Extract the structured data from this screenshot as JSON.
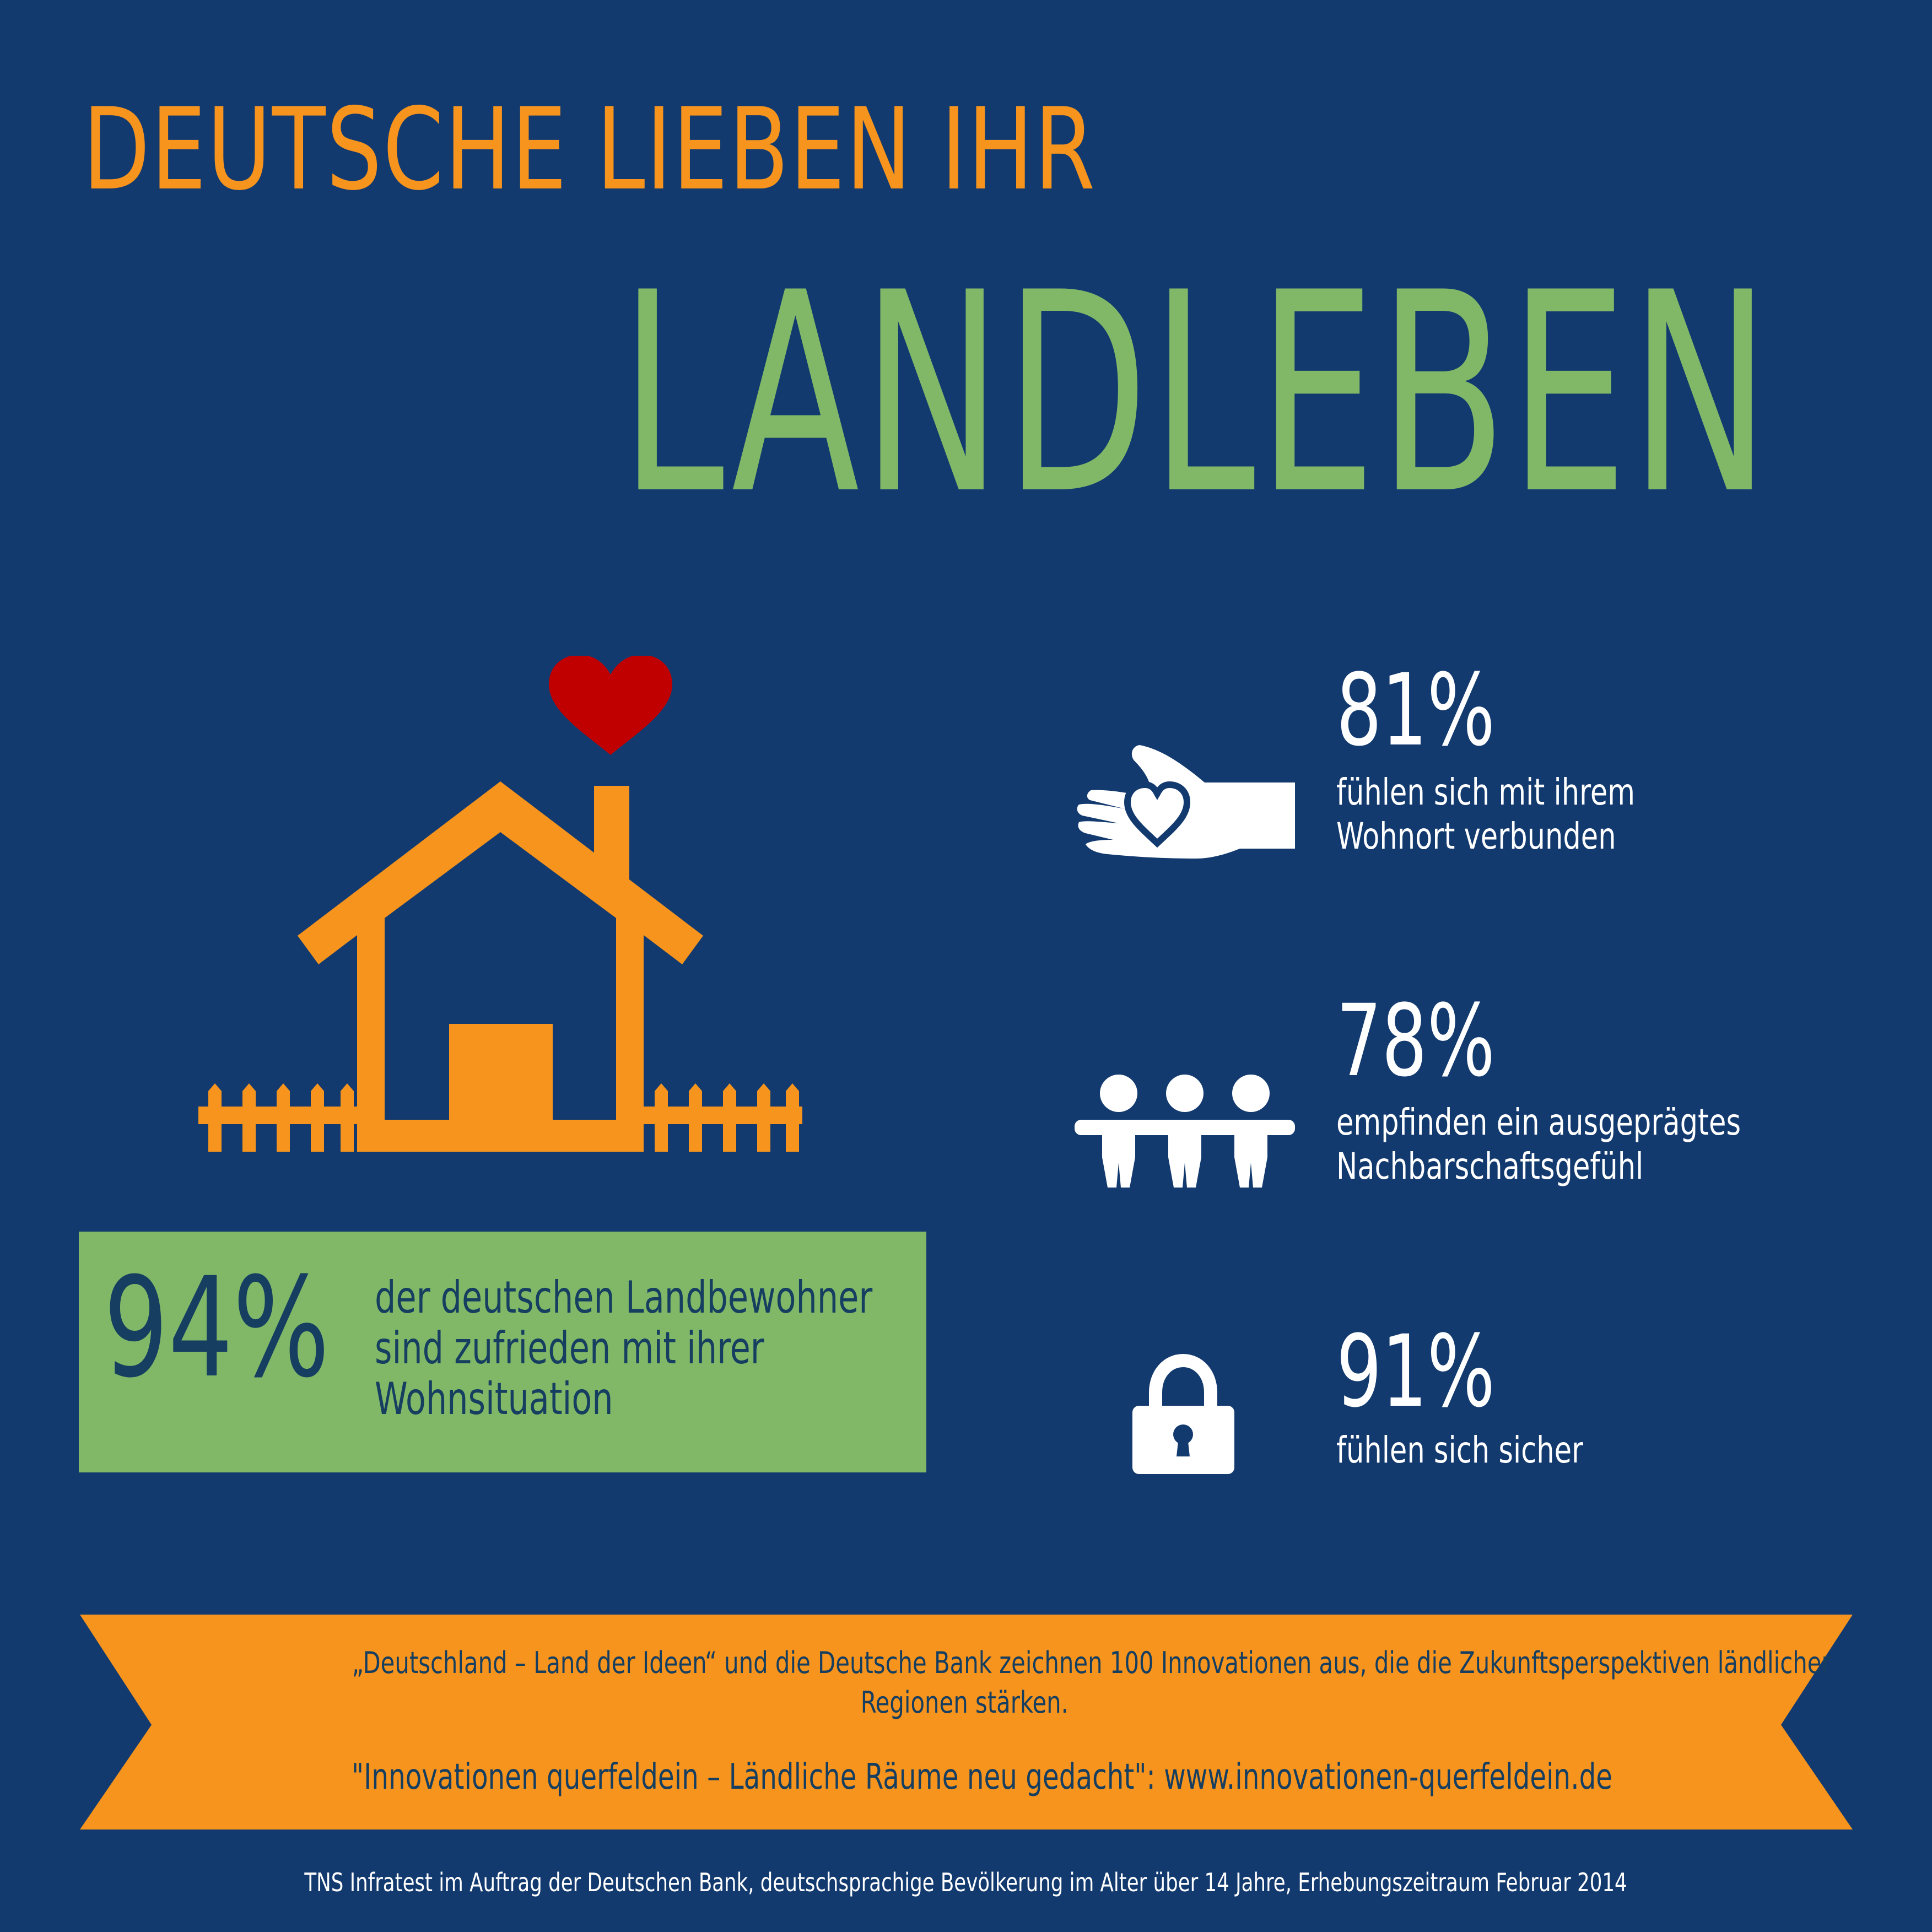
{
  "title": {
    "line1": "DEUTSCHE LIEBEN IHR",
    "line2": "LANDLEBEN"
  },
  "colors": {
    "background": "#133a6e",
    "orange": "#f7941d",
    "green": "#80b868",
    "dark_text": "#153e60",
    "heart": "#c00000",
    "white": "#ffffff"
  },
  "main_stat": {
    "percent": "94%",
    "line1": "der deutschen Landbewohner",
    "line2": "sind zufrieden mit ihrer",
    "line3": "Wohnsituation",
    "icon": "house-with-heart-icon"
  },
  "stats": [
    {
      "percent": "81%",
      "line1": "fühlen sich mit ihrem",
      "line2": "Wohnort verbunden",
      "icon": "hand-heart-icon"
    },
    {
      "percent": "78%",
      "line1": "empfinden ein ausgeprägtes",
      "line2": "Nachbarschaftsgefühl",
      "icon": "people-holding-hands-icon"
    },
    {
      "percent": "91%",
      "line1": "fühlen sich sicher",
      "icon": "padlock-icon"
    }
  ],
  "ribbon": {
    "line1": "„Deutschland – Land der Ideen“ und die Deutsche Bank zeichnen 100 Innovationen aus, die die Zukunftsperspektiven ländlicher",
    "line2": "Regionen stärken.",
    "line3": "\"Innovationen querfeldein – Ländliche Räume neu gedacht\": www.innovationen-querfeldein.de"
  },
  "footer": "TNS Infratest im Auftrag der Deutschen Bank, deutschsprachige Bevölkerung im Alter über 14 Jahre, Erhebungszeitraum Februar 2014"
}
